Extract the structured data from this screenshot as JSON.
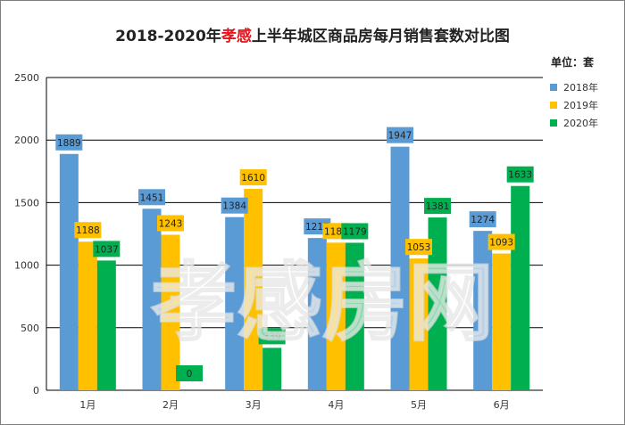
{
  "chart_data": {
    "type": "bar",
    "title_parts": [
      {
        "text": "2018-2020年",
        "color": "#222222"
      },
      {
        "text": "孝感",
        "color": "#e8141b"
      },
      {
        "text": "上半年城区商品房每月销售套数对比图",
        "color": "#222222"
      }
    ],
    "unit_label": "单位：套",
    "categories": [
      "1月",
      "2月",
      "3月",
      "4月",
      "5月",
      "6月"
    ],
    "series": [
      {
        "name": "2018年",
        "color": "#5b9bd5",
        "values": [
          1889,
          1451,
          1384,
          1217,
          1947,
          1274
        ]
      },
      {
        "name": "2019年",
        "color": "#ffc000",
        "values": [
          1188,
          1243,
          1610,
          1180,
          1053,
          1093
        ]
      },
      {
        "name": "2020年",
        "color": "#00b050",
        "values": [
          1037,
          0,
          339,
          1179,
          1381,
          1633
        ]
      }
    ],
    "ylim": [
      0,
      2500
    ],
    "yticks": [
      0,
      500,
      1000,
      1500,
      2000,
      2500
    ],
    "grid": true,
    "legend_position": "right",
    "watermark": "孝感房网"
  }
}
